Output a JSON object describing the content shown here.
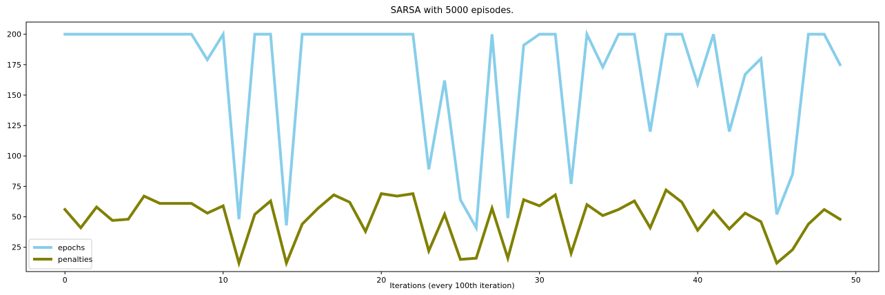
{
  "chart_data": {
    "type": "line",
    "title": "SARSA with 5000 episodes.",
    "xlabel": "Iterations (every 100th iteration)",
    "ylabel": "",
    "x": [
      0,
      1,
      2,
      3,
      4,
      5,
      6,
      7,
      8,
      9,
      10,
      11,
      12,
      13,
      14,
      15,
      16,
      17,
      18,
      19,
      20,
      21,
      22,
      23,
      24,
      25,
      26,
      27,
      28,
      29,
      30,
      31,
      32,
      33,
      34,
      35,
      36,
      37,
      38,
      39,
      40,
      41,
      42,
      43,
      44,
      45,
      46,
      47,
      48,
      49
    ],
    "xlim": [
      -2.45,
      51.45
    ],
    "ylim": [
      5,
      210
    ],
    "xticks": [
      0,
      10,
      20,
      30,
      40,
      50
    ],
    "yticks": [
      25,
      50,
      75,
      100,
      125,
      150,
      175,
      200
    ],
    "grid": false,
    "legend_position": "lower-left",
    "series": [
      {
        "name": "epochs",
        "color": "#87ceeb",
        "values": [
          200,
          200,
          200,
          200,
          200,
          200,
          200,
          200,
          200,
          179,
          200,
          48,
          200,
          200,
          43,
          200,
          200,
          200,
          200,
          200,
          200,
          200,
          200,
          89,
          162,
          64,
          41,
          200,
          49,
          191,
          200,
          200,
          77,
          200,
          173,
          200,
          200,
          120,
          200,
          200,
          159,
          200,
          120,
          167,
          180,
          52,
          85,
          200,
          200,
          175
        ]
      },
      {
        "name": "penalties",
        "color": "#808000",
        "values": [
          56,
          41,
          58,
          47,
          48,
          67,
          61,
          61,
          61,
          53,
          59,
          12,
          52,
          63,
          12,
          44,
          57,
          68,
          62,
          38,
          69,
          67,
          69,
          22,
          52,
          15,
          16,
          57,
          16,
          64,
          59,
          68,
          20,
          60,
          51,
          56,
          63,
          41,
          72,
          62,
          39,
          55,
          40,
          53,
          46,
          12,
          23,
          44,
          56,
          48
        ]
      }
    ]
  }
}
